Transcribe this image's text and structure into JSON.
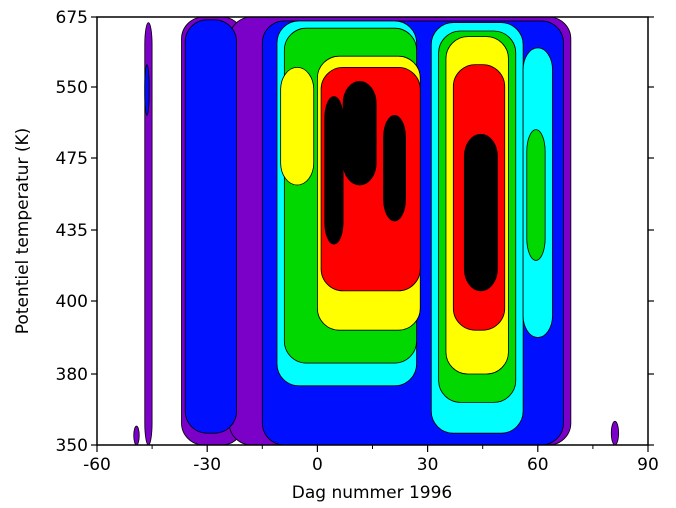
{
  "chart_data": {
    "type": "heatmap",
    "title": "",
    "xlabel": "Dag nummer 1996",
    "ylabel": "Potentiel temperatur (K)",
    "xlim": [
      -60,
      90
    ],
    "ylim": [
      350,
      675
    ],
    "x_ticks": [
      -60,
      -30,
      0,
      30,
      60,
      90
    ],
    "x_tick_labels": [
      "-60",
      "-30",
      "0",
      "30",
      "60",
      "90"
    ],
    "y_ticks": [
      350,
      380,
      400,
      435,
      475,
      550,
      675
    ],
    "y_tick_labels": [
      "350",
      "380",
      "400",
      "435",
      "475",
      "550",
      "675"
    ],
    "y_scale": "nonlinear (ticks as labeled)",
    "grid": false,
    "legend": "none",
    "contour_levels": [
      "purple",
      "blue",
      "cyan",
      "green",
      "yellow",
      "red",
      "black"
    ],
    "colors": {
      "purple": "#7b00c8",
      "blue": "#0010ff",
      "cyan": "#00ffff",
      "green": "#00d800",
      "yellow": "#ffff00",
      "red": "#ff0000",
      "black": "#000000",
      "background": "#ffffff"
    }
  }
}
